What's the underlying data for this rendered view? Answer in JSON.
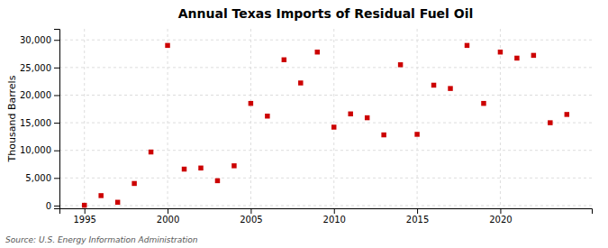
{
  "chart_data": {
    "type": "scatter",
    "title": "Annual Texas Imports of Residual Fuel Oil",
    "ylabel": "Thousand Barrels",
    "source": "Source: U.S. Energy Information Administration",
    "x": [
      1995,
      1996,
      1997,
      1998,
      1999,
      2000,
      2001,
      2002,
      2003,
      2004,
      2005,
      2006,
      2007,
      2008,
      2009,
      2010,
      2011,
      2012,
      2013,
      2014,
      2015,
      2016,
      2017,
      2018,
      2019,
      2020,
      2021,
      2022,
      2023,
      2024
    ],
    "values": [
      50,
      1800,
      600,
      4000,
      9700,
      29000,
      6600,
      6800,
      4500,
      7200,
      18500,
      16200,
      26400,
      22200,
      27800,
      14200,
      16600,
      15900,
      12800,
      25500,
      12900,
      21800,
      21200,
      29000,
      18500,
      27800,
      26700,
      27200,
      15000,
      16500
    ],
    "color": "#cc0000",
    "marker": "square",
    "xlim": [
      1993.5,
      2025.5
    ],
    "ylim": [
      -500,
      32000
    ],
    "xticks": [
      1995,
      2000,
      2005,
      2010,
      2015,
      2020
    ],
    "yticks": [
      0,
      {
        "value": 5000,
        "label": "5,000"
      },
      {
        "value": 10000,
        "label": "10,000"
      },
      {
        "value": 15000,
        "label": "15,000"
      },
      {
        "value": 20000,
        "label": "20,000"
      },
      {
        "value": 25000,
        "label": "25,000"
      },
      {
        "value": 30000,
        "label": "30,000"
      }
    ],
    "grid": true
  }
}
